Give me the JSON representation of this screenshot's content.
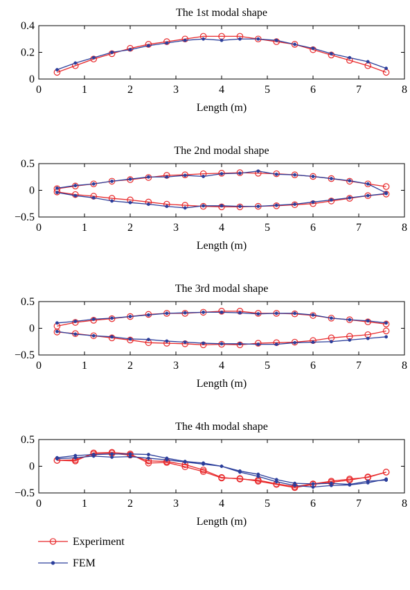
{
  "chart_data": [
    {
      "type": "line",
      "title": "The 1st modal shape",
      "xlabel": "Length (m)",
      "ylabel": "",
      "xlim": [
        0,
        8
      ],
      "ylim": [
        0,
        0.4
      ],
      "xticks": [
        "0",
        "1",
        "2",
        "3",
        "4",
        "5",
        "6",
        "7",
        "8"
      ],
      "yticks": [
        "0",
        "0.2",
        "0.4"
      ],
      "grid": false,
      "series": [
        {
          "name": "Experiment",
          "lines": [
            {
              "x": [
                0.4,
                0.8,
                1.2,
                1.6,
                2.0,
                2.4,
                2.8,
                3.2,
                3.6,
                4.0,
                4.4,
                4.8,
                5.2,
                5.6,
                6.0,
                6.4,
                6.8,
                7.2,
                7.6
              ],
              "y": [
                0.05,
                0.1,
                0.15,
                0.19,
                0.23,
                0.26,
                0.28,
                0.3,
                0.32,
                0.32,
                0.32,
                0.3,
                0.28,
                0.26,
                0.22,
                0.18,
                0.14,
                0.1,
                0.05
              ]
            }
          ]
        },
        {
          "name": "FEM",
          "lines": [
            {
              "x": [
                0.4,
                0.8,
                1.2,
                1.6,
                2.0,
                2.4,
                2.8,
                3.2,
                3.6,
                4.0,
                4.4,
                4.8,
                5.2,
                5.6,
                6.0,
                6.4,
                6.8,
                7.2,
                7.6
              ],
              "y": [
                0.07,
                0.12,
                0.16,
                0.2,
                0.22,
                0.25,
                0.27,
                0.29,
                0.3,
                0.29,
                0.3,
                0.3,
                0.29,
                0.26,
                0.23,
                0.19,
                0.16,
                0.13,
                0.08
              ]
            }
          ]
        }
      ]
    },
    {
      "type": "line",
      "title": "The 2nd modal shape",
      "xlabel": "Length (m)",
      "ylabel": "",
      "xlim": [
        0,
        8
      ],
      "ylim": [
        -0.5,
        0.5
      ],
      "xticks": [
        "0",
        "1",
        "2",
        "3",
        "4",
        "5",
        "6",
        "7",
        "8"
      ],
      "yticks": [
        "−0.5",
        "0",
        "0.5"
      ],
      "grid": false,
      "series": [
        {
          "name": "Experiment",
          "lines": [
            {
              "x": [
                0.4,
                0.8,
                1.2,
                1.6,
                2.0,
                2.4,
                2.8,
                3.2,
                3.6,
                4.0,
                4.4,
                4.8,
                5.2,
                5.6,
                6.0,
                6.4,
                6.8,
                7.2,
                7.6
              ],
              "y": [
                0.03,
                0.08,
                0.12,
                0.17,
                0.2,
                0.24,
                0.28,
                0.29,
                0.31,
                0.32,
                0.33,
                0.32,
                0.31,
                0.29,
                0.26,
                0.22,
                0.17,
                0.12,
                0.07
              ]
            },
            {
              "x": [
                0.4,
                0.8,
                1.2,
                1.6,
                2.0,
                2.4,
                2.8,
                3.2,
                3.6,
                4.0,
                4.4,
                4.8,
                5.2,
                5.6,
                6.0,
                6.4,
                6.8,
                7.2,
                7.6
              ],
              "y": [
                -0.03,
                -0.08,
                -0.11,
                -0.15,
                -0.18,
                -0.22,
                -0.26,
                -0.28,
                -0.3,
                -0.31,
                -0.31,
                -0.3,
                -0.29,
                -0.27,
                -0.25,
                -0.2,
                -0.15,
                -0.1,
                -0.07
              ]
            }
          ]
        },
        {
          "name": "FEM",
          "lines": [
            {
              "x": [
                0.4,
                0.8,
                1.2,
                1.6,
                2.0,
                2.4,
                2.8,
                3.2,
                3.6,
                4.0,
                4.4,
                4.8,
                5.2,
                5.6,
                6.0,
                6.4,
                6.8,
                7.2,
                7.6
              ],
              "y": [
                0.04,
                0.09,
                0.12,
                0.17,
                0.21,
                0.25,
                0.25,
                0.28,
                0.26,
                0.31,
                0.32,
                0.36,
                0.3,
                0.29,
                0.26,
                0.22,
                0.18,
                0.12,
                -0.05
              ]
            },
            {
              "x": [
                0.4,
                0.8,
                1.2,
                1.6,
                2.0,
                2.4,
                2.8,
                3.2,
                3.6,
                4.0,
                4.4,
                4.8,
                5.2,
                5.6,
                6.0,
                6.4,
                6.8,
                7.2,
                7.6
              ],
              "y": [
                -0.04,
                -0.1,
                -0.14,
                -0.2,
                -0.23,
                -0.26,
                -0.3,
                -0.33,
                -0.29,
                -0.29,
                -0.3,
                -0.3,
                -0.28,
                -0.26,
                -0.22,
                -0.18,
                -0.14,
                -0.1,
                -0.06
              ]
            }
          ]
        }
      ]
    },
    {
      "type": "line",
      "title": "The 3rd modal shape",
      "xlabel": "Length (m)",
      "ylabel": "",
      "xlim": [
        0,
        8
      ],
      "ylim": [
        -0.5,
        0.5
      ],
      "xticks": [
        "0",
        "1",
        "2",
        "3",
        "4",
        "5",
        "6",
        "7",
        "8"
      ],
      "yticks": [
        "−0.5",
        "0",
        "0.5"
      ],
      "grid": false,
      "series": [
        {
          "name": "Experiment",
          "lines": [
            {
              "x": [
                0.4,
                0.8,
                1.2,
                1.6,
                2.0,
                2.4,
                2.8,
                3.2,
                3.6,
                4.0,
                4.4,
                4.8,
                5.2,
                5.6,
                6.0,
                6.4,
                6.8,
                7.2,
                7.6
              ],
              "y": [
                0.04,
                0.11,
                0.15,
                0.18,
                0.22,
                0.26,
                0.28,
                0.28,
                0.3,
                0.32,
                0.32,
                0.28,
                0.28,
                0.27,
                0.24,
                0.19,
                0.16,
                0.12,
                0.08
              ]
            },
            {
              "x": [
                0.4,
                0.8,
                1.2,
                1.6,
                2.0,
                2.4,
                2.8,
                3.2,
                3.6,
                4.0,
                4.4,
                4.8,
                5.2,
                5.6,
                6.0,
                6.4,
                6.8,
                7.2,
                7.6
              ],
              "y": [
                -0.07,
                -0.1,
                -0.14,
                -0.18,
                -0.22,
                -0.27,
                -0.28,
                -0.29,
                -0.31,
                -0.3,
                -0.31,
                -0.28,
                -0.27,
                -0.26,
                -0.23,
                -0.18,
                -0.15,
                -0.12,
                -0.05
              ]
            }
          ]
        },
        {
          "name": "FEM",
          "lines": [
            {
              "x": [
                0.4,
                0.8,
                1.2,
                1.6,
                2.0,
                2.4,
                2.8,
                3.2,
                3.6,
                4.0,
                4.4,
                4.8,
                5.2,
                5.6,
                6.0,
                6.4,
                6.8,
                7.2,
                7.6
              ],
              "y": [
                0.1,
                0.13,
                0.17,
                0.19,
                0.22,
                0.25,
                0.28,
                0.29,
                0.3,
                0.3,
                0.29,
                0.27,
                0.28,
                0.28,
                0.25,
                0.19,
                0.16,
                0.14,
                0.1
              ]
            },
            {
              "x": [
                0.4,
                0.8,
                1.2,
                1.6,
                2.0,
                2.4,
                2.8,
                3.2,
                3.6,
                4.0,
                4.4,
                4.8,
                5.2,
                5.6,
                6.0,
                6.4,
                6.8,
                7.2,
                7.6
              ],
              "y": [
                -0.06,
                -0.11,
                -0.14,
                -0.16,
                -0.2,
                -0.21,
                -0.24,
                -0.26,
                -0.28,
                -0.29,
                -0.29,
                -0.3,
                -0.3,
                -0.27,
                -0.26,
                -0.25,
                -0.22,
                -0.19,
                -0.16
              ]
            }
          ]
        }
      ]
    },
    {
      "type": "line",
      "title": "The 4th modal shape",
      "xlabel": "Length (m)",
      "ylabel": "",
      "xlim": [
        0,
        8
      ],
      "ylim": [
        -0.5,
        0.5
      ],
      "xticks": [
        "0",
        "1",
        "2",
        "3",
        "4",
        "5",
        "6",
        "7",
        "8"
      ],
      "yticks": [
        "−0.5",
        "0",
        "0.5"
      ],
      "grid": false,
      "series": [
        {
          "name": "Experiment",
          "lines": [
            {
              "x": [
                0.4,
                0.8,
                1.2,
                1.6,
                2.0,
                2.4,
                2.8,
                3.2,
                3.6,
                4.0,
                4.4,
                4.8,
                5.2,
                5.6,
                6.0,
                6.4,
                6.8,
                7.2,
                7.6
              ],
              "y": [
                0.11,
                0.1,
                0.25,
                0.26,
                0.23,
                0.06,
                0.07,
                -0.01,
                -0.1,
                -0.22,
                -0.23,
                -0.28,
                -0.34,
                -0.4,
                -0.34,
                -0.3,
                -0.26,
                -0.2,
                -0.11
              ]
            },
            {
              "x": [
                0.4,
                0.8,
                1.2,
                1.6,
                2.0,
                2.4,
                2.8,
                3.2,
                3.6,
                4.0,
                4.4,
                4.8,
                5.2,
                5.6,
                6.0,
                6.4,
                6.8,
                7.2,
                7.6
              ],
              "y": [
                0.11,
                0.12,
                0.23,
                0.24,
                0.21,
                0.1,
                0.09,
                0.03,
                -0.07,
                -0.21,
                -0.24,
                -0.26,
                -0.33,
                -0.38,
                -0.33,
                -0.28,
                -0.24,
                -0.21,
                -0.11
              ]
            }
          ]
        },
        {
          "name": "FEM",
          "lines": [
            {
              "x": [
                0.4,
                0.8,
                1.2,
                1.6,
                2.0,
                2.4,
                2.8,
                3.2,
                3.6,
                4.0,
                4.4,
                4.8,
                5.2,
                5.6,
                6.0,
                6.4,
                6.8,
                7.2,
                7.6
              ],
              "y": [
                0.16,
                0.2,
                0.22,
                0.23,
                0.23,
                0.22,
                0.15,
                0.09,
                0.06,
                0.0,
                -0.09,
                -0.15,
                -0.25,
                -0.32,
                -0.33,
                -0.32,
                -0.34,
                -0.28,
                -0.26
              ]
            },
            {
              "x": [
                0.4,
                0.8,
                1.2,
                1.6,
                2.0,
                2.4,
                2.8,
                3.2,
                3.6,
                4.0,
                4.4,
                4.8,
                5.2,
                5.6,
                6.0,
                6.4,
                6.8,
                7.2,
                7.6
              ],
              "y": [
                0.14,
                0.16,
                0.19,
                0.17,
                0.18,
                0.15,
                0.12,
                0.08,
                0.04,
                0.0,
                -0.11,
                -0.19,
                -0.29,
                -0.36,
                -0.39,
                -0.36,
                -0.35,
                -0.31,
                -0.24
              ]
            }
          ]
        }
      ]
    }
  ],
  "legend": {
    "placement": "bottom-left",
    "items": [
      {
        "label": "Experiment",
        "color": "#e8282a",
        "marker": "open-circle"
      },
      {
        "label": "FEM",
        "color": "#2b3e9b",
        "marker": "filled-dot"
      }
    ]
  },
  "colors": {
    "experiment": "#e8282a",
    "fem": "#2b3e9b",
    "axes": "#000000"
  }
}
